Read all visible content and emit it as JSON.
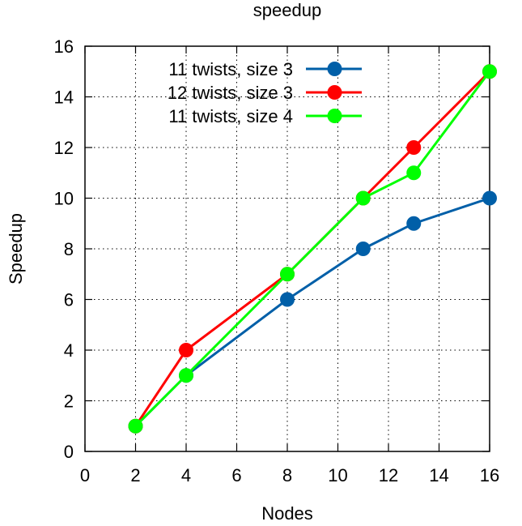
{
  "chart_data": {
    "type": "line",
    "title": "speedup",
    "xlabel": "Nodes",
    "ylabel": "Speedup",
    "xlim": [
      0,
      16
    ],
    "ylim": [
      0,
      16
    ],
    "xticks": [
      0,
      2,
      4,
      6,
      8,
      10,
      12,
      14,
      16
    ],
    "yticks": [
      0,
      2,
      4,
      6,
      8,
      10,
      12,
      14,
      16
    ],
    "grid": true,
    "legend_position": "top-left",
    "series": [
      {
        "name": "11 twists, size 3",
        "color": "#005fa8",
        "x": [
          2,
          4,
          8,
          11,
          13,
          16
        ],
        "y": [
          1,
          3,
          6,
          8,
          9,
          10
        ]
      },
      {
        "name": "12 twists, size 3",
        "color": "#ff0000",
        "x": [
          2,
          4,
          8,
          11,
          13,
          16
        ],
        "y": [
          1,
          4,
          7,
          10,
          12,
          15
        ]
      },
      {
        "name": "11 twists, size 4",
        "color": "#00ff00",
        "x": [
          2,
          4,
          8,
          11,
          13,
          16
        ],
        "y": [
          1,
          3,
          7,
          10,
          11,
          15
        ]
      }
    ]
  }
}
